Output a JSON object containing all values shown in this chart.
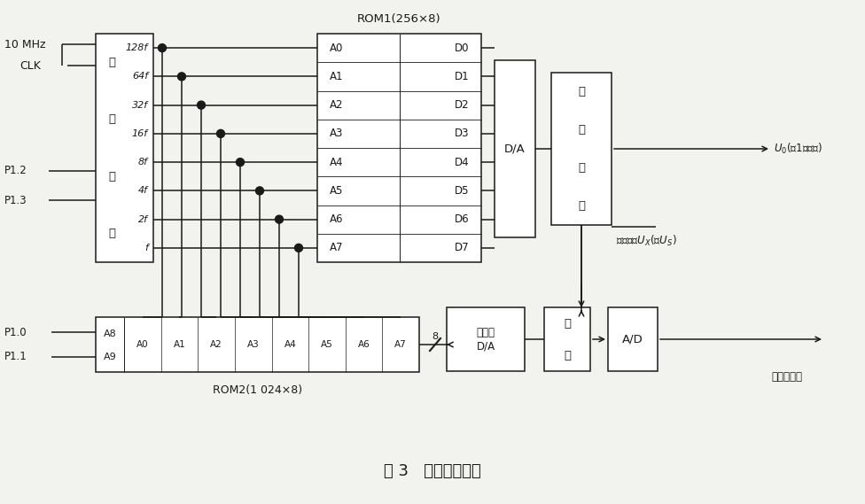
{
  "title": "图 3   相敏检波电路",
  "bg_color": "#f2f2ee",
  "freq_labels": [
    "128f",
    "64f",
    "32f",
    "16f",
    "8f",
    "4f",
    "2f",
    "f"
  ],
  "rom1_addr": [
    "A0",
    "A1",
    "A2",
    "A3",
    "A4",
    "A5",
    "A6",
    "A7"
  ],
  "rom1_data": [
    "D0",
    "D1",
    "D2",
    "D3",
    "D4",
    "D5",
    "D6",
    "D7"
  ],
  "rom2_addr_left": [
    "A8",
    "A9"
  ],
  "rom2_addr_top": [
    "A0",
    "A1",
    "A2",
    "A3",
    "A4",
    "A5",
    "A6",
    "A7"
  ],
  "label_10mhz": "10 MHz",
  "label_clk": "CLK",
  "label_divider_chars": [
    "数",
    "字",
    "分",
    "频"
  ],
  "label_rom1": "ROM1(256×8)",
  "label_rom2": "ROM2(1 024×8)",
  "label_da1": "D/A",
  "label_filter_amp_chars": [
    "滤",
    "波",
    "放",
    "大"
  ],
  "label_mult_da_line1": "乘法型",
  "label_mult_da_line2": "D/A",
  "label_filter2_chars": [
    "滤",
    "波"
  ],
  "label_ad": "A/D",
  "label_p12": "P1.2",
  "label_p13": "P1.3",
  "label_p10": "P1.0",
  "label_p11": "P1.1",
  "label_u0": "$U_0$(图1信号源)",
  "label_ux": "被测信号$U_X$(或$U_S$)",
  "label_micro": "至微处理器",
  "label_8": "8"
}
